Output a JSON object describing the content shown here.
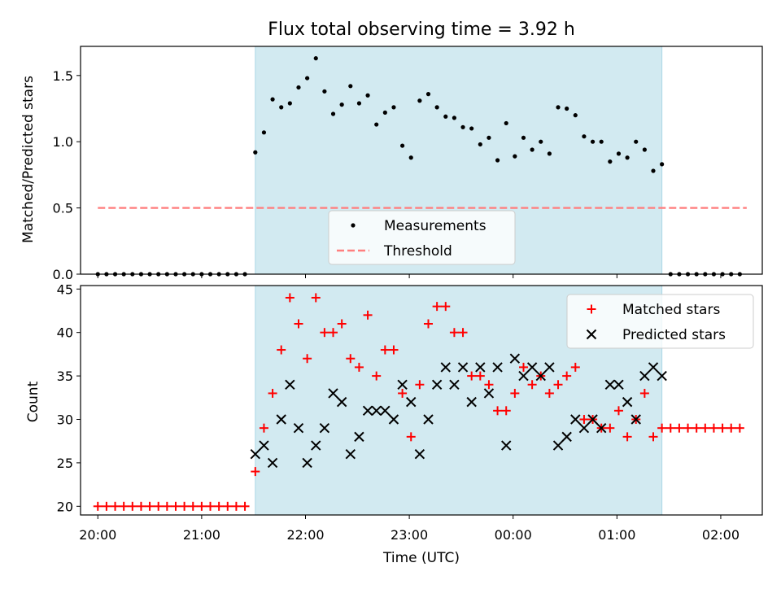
{
  "chart_data": [
    {
      "type": "scatter",
      "title": "Flux total observing time = 3.92 h",
      "xlabel": "",
      "ylabel": "Matched/Predicted stars",
      "ylim": [
        0,
        1.72
      ],
      "y_ticks": [
        "0.0",
        "0.5",
        "1.0",
        "1.5"
      ],
      "shaded_interval": [
        "21:31",
        "01:26"
      ],
      "shade_color": "#add8e6",
      "threshold": {
        "name": "Threshold",
        "value": 0.5,
        "x_range": [
          "20:00",
          "02:15"
        ],
        "color": "#ff7f7f"
      },
      "legend": {
        "position": "lower center",
        "entries": [
          "Measurements",
          "Threshold"
        ]
      },
      "series": [
        {
          "name": "Measurements",
          "marker": "dot",
          "color": "#000000",
          "points": [
            [
              "20:00",
              0
            ],
            [
              "20:05",
              0
            ],
            [
              "20:10",
              0
            ],
            [
              "20:15",
              0
            ],
            [
              "20:20",
              0
            ],
            [
              "20:25",
              0
            ],
            [
              "20:30",
              0
            ],
            [
              "20:35",
              0
            ],
            [
              "20:40",
              0
            ],
            [
              "20:45",
              0
            ],
            [
              "20:50",
              0
            ],
            [
              "20:55",
              0
            ],
            [
              "21:00",
              0
            ],
            [
              "21:05",
              0
            ],
            [
              "21:10",
              0
            ],
            [
              "21:15",
              0
            ],
            [
              "21:20",
              0
            ],
            [
              "21:25",
              0
            ],
            [
              "21:31",
              0.92
            ],
            [
              "21:36",
              1.07
            ],
            [
              "21:41",
              1.32
            ],
            [
              "21:46",
              1.26
            ],
            [
              "21:51",
              1.29
            ],
            [
              "21:56",
              1.41
            ],
            [
              "22:01",
              1.48
            ],
            [
              "22:06",
              1.63
            ],
            [
              "22:11",
              1.38
            ],
            [
              "22:16",
              1.21
            ],
            [
              "22:21",
              1.28
            ],
            [
              "22:26",
              1.42
            ],
            [
              "22:31",
              1.29
            ],
            [
              "22:36",
              1.35
            ],
            [
              "22:41",
              1.13
            ],
            [
              "22:46",
              1.22
            ],
            [
              "22:51",
              1.26
            ],
            [
              "22:56",
              0.97
            ],
            [
              "23:01",
              0.88
            ],
            [
              "23:06",
              1.31
            ],
            [
              "23:11",
              1.36
            ],
            [
              "23:16",
              1.26
            ],
            [
              "23:21",
              1.19
            ],
            [
              "23:26",
              1.18
            ],
            [
              "23:31",
              1.11
            ],
            [
              "23:36",
              1.1
            ],
            [
              "23:41",
              0.98
            ],
            [
              "23:46",
              1.03
            ],
            [
              "23:51",
              0.86
            ],
            [
              "23:56",
              1.14
            ],
            [
              "00:01",
              0.89
            ],
            [
              "00:06",
              1.03
            ],
            [
              "00:11",
              0.94
            ],
            [
              "00:16",
              1.0
            ],
            [
              "00:21",
              0.91
            ],
            [
              "00:26",
              1.26
            ],
            [
              "00:31",
              1.25
            ],
            [
              "00:36",
              1.2
            ],
            [
              "00:41",
              1.04
            ],
            [
              "00:46",
              1.0
            ],
            [
              "00:51",
              1.0
            ],
            [
              "00:56",
              0.85
            ],
            [
              "01:01",
              0.91
            ],
            [
              "01:06",
              0.88
            ],
            [
              "01:11",
              1.0
            ],
            [
              "01:16",
              0.94
            ],
            [
              "01:21",
              0.78
            ],
            [
              "01:26",
              0.83
            ],
            [
              "01:31",
              0
            ],
            [
              "01:36",
              0
            ],
            [
              "01:41",
              0
            ],
            [
              "01:46",
              0
            ],
            [
              "01:51",
              0
            ],
            [
              "01:56",
              0
            ],
            [
              "02:01",
              0
            ],
            [
              "02:06",
              0
            ],
            [
              "02:11",
              0
            ]
          ]
        }
      ]
    },
    {
      "type": "scatter",
      "title": "",
      "xlabel": "Time (UTC)",
      "ylabel": "Count",
      "ylim": [
        19,
        45.4
      ],
      "y_ticks": [
        "20",
        "25",
        "30",
        "35",
        "40",
        "45"
      ],
      "x_ticks": [
        "20:00",
        "21:00",
        "22:00",
        "23:00",
        "00:00",
        "01:00",
        "02:00"
      ],
      "shaded_interval": [
        "21:31",
        "01:26"
      ],
      "shade_color": "#add8e6",
      "legend": {
        "position": "upper right",
        "entries": [
          "Matched stars",
          "Predicted stars"
        ]
      },
      "series": [
        {
          "name": "Matched stars",
          "marker": "plus",
          "color": "#ff0000",
          "points": [
            [
              "20:00",
              20
            ],
            [
              "20:05",
              20
            ],
            [
              "20:10",
              20
            ],
            [
              "20:15",
              20
            ],
            [
              "20:20",
              20
            ],
            [
              "20:25",
              20
            ],
            [
              "20:30",
              20
            ],
            [
              "20:35",
              20
            ],
            [
              "20:40",
              20
            ],
            [
              "20:45",
              20
            ],
            [
              "20:50",
              20
            ],
            [
              "20:55",
              20
            ],
            [
              "21:00",
              20
            ],
            [
              "21:05",
              20
            ],
            [
              "21:10",
              20
            ],
            [
              "21:15",
              20
            ],
            [
              "21:20",
              20
            ],
            [
              "21:25",
              20
            ],
            [
              "21:31",
              24
            ],
            [
              "21:36",
              29
            ],
            [
              "21:41",
              33
            ],
            [
              "21:46",
              38
            ],
            [
              "21:51",
              44
            ],
            [
              "21:56",
              41
            ],
            [
              "22:01",
              37
            ],
            [
              "22:06",
              44
            ],
            [
              "22:11",
              40
            ],
            [
              "22:16",
              40
            ],
            [
              "22:21",
              41
            ],
            [
              "22:26",
              37
            ],
            [
              "22:31",
              36
            ],
            [
              "22:36",
              42
            ],
            [
              "22:41",
              35
            ],
            [
              "22:46",
              38
            ],
            [
              "22:51",
              38
            ],
            [
              "22:56",
              33
            ],
            [
              "23:01",
              28
            ],
            [
              "23:06",
              34
            ],
            [
              "23:11",
              41
            ],
            [
              "23:16",
              43
            ],
            [
              "23:21",
              43
            ],
            [
              "23:26",
              40
            ],
            [
              "23:31",
              40
            ],
            [
              "23:36",
              35
            ],
            [
              "23:41",
              35
            ],
            [
              "23:46",
              34
            ],
            [
              "23:51",
              31
            ],
            [
              "23:56",
              31
            ],
            [
              "00:01",
              33
            ],
            [
              "00:06",
              36
            ],
            [
              "00:11",
              34
            ],
            [
              "00:16",
              35
            ],
            [
              "00:21",
              33
            ],
            [
              "00:26",
              34
            ],
            [
              "00:31",
              35
            ],
            [
              "00:36",
              36
            ],
            [
              "00:41",
              30
            ],
            [
              "00:46",
              30
            ],
            [
              "00:51",
              29
            ],
            [
              "00:56",
              29
            ],
            [
              "01:01",
              31
            ],
            [
              "01:06",
              28
            ],
            [
              "01:11",
              30
            ],
            [
              "01:16",
              33
            ],
            [
              "01:21",
              28
            ],
            [
              "01:26",
              29
            ],
            [
              "01:31",
              29
            ],
            [
              "01:36",
              29
            ],
            [
              "01:41",
              29
            ],
            [
              "01:46",
              29
            ],
            [
              "01:51",
              29
            ],
            [
              "01:56",
              29
            ],
            [
              "02:01",
              29
            ],
            [
              "02:06",
              29
            ],
            [
              "02:11",
              29
            ]
          ]
        },
        {
          "name": "Predicted stars",
          "marker": "x",
          "color": "#000000",
          "points": [
            [
              "21:31",
              26
            ],
            [
              "21:36",
              27
            ],
            [
              "21:41",
              25
            ],
            [
              "21:46",
              30
            ],
            [
              "21:51",
              34
            ],
            [
              "21:56",
              29
            ],
            [
              "22:01",
              25
            ],
            [
              "22:06",
              27
            ],
            [
              "22:11",
              29
            ],
            [
              "22:16",
              33
            ],
            [
              "22:21",
              32
            ],
            [
              "22:26",
              26
            ],
            [
              "22:31",
              28
            ],
            [
              "22:36",
              31
            ],
            [
              "22:41",
              31
            ],
            [
              "22:46",
              31
            ],
            [
              "22:51",
              30
            ],
            [
              "22:56",
              34
            ],
            [
              "23:01",
              32
            ],
            [
              "23:06",
              26
            ],
            [
              "23:11",
              30
            ],
            [
              "23:16",
              34
            ],
            [
              "23:21",
              36
            ],
            [
              "23:26",
              34
            ],
            [
              "23:31",
              36
            ],
            [
              "23:36",
              32
            ],
            [
              "23:41",
              36
            ],
            [
              "23:46",
              33
            ],
            [
              "23:51",
              36
            ],
            [
              "23:56",
              27
            ],
            [
              "00:01",
              37
            ],
            [
              "00:06",
              35
            ],
            [
              "00:11",
              36
            ],
            [
              "00:16",
              35
            ],
            [
              "00:21",
              36
            ],
            [
              "00:26",
              27
            ],
            [
              "00:31",
              28
            ],
            [
              "00:36",
              30
            ],
            [
              "00:41",
              29
            ],
            [
              "00:46",
              30
            ],
            [
              "00:51",
              29
            ],
            [
              "00:56",
              34
            ],
            [
              "01:01",
              34
            ],
            [
              "01:06",
              32
            ],
            [
              "01:11",
              30
            ],
            [
              "01:16",
              35
            ],
            [
              "01:21",
              36
            ],
            [
              "01:26",
              35
            ]
          ]
        }
      ]
    }
  ]
}
